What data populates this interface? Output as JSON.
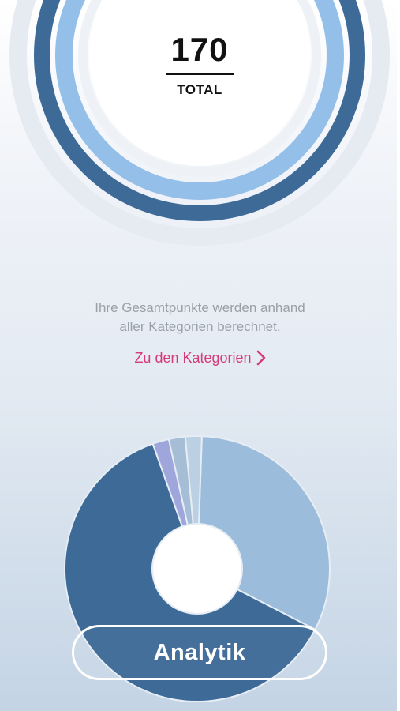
{
  "score": {
    "total_value": "170",
    "total_label": "TOTAL"
  },
  "description": {
    "line1": "Ihre Gesamtpunkte werden anhand",
    "line2": "aller Kategorien berechnet."
  },
  "categories_link": {
    "label": "Zu den Kategorien",
    "icon": "chevron-right-icon",
    "color": "#d63a7c"
  },
  "analytik_button": {
    "label": "Analytik"
  },
  "colors": {
    "dark_blue": "#3d6a96",
    "light_blue": "#93bfe8",
    "pale_blue": "#9cbcdb",
    "lavender": "#9fa6dc",
    "accent_pink": "#d63a7c"
  },
  "chart_data": {
    "type": "pie",
    "donut": true,
    "slices": [
      {
        "value": 0.32,
        "color": "#9cbcdb"
      },
      {
        "value": 0.62,
        "color": "#3d6a96"
      },
      {
        "value": 0.02,
        "color": "#9fa6dc"
      },
      {
        "value": 0.02,
        "color": "#a6bdd6"
      },
      {
        "value": 0.02,
        "color": "#bcd0e4"
      }
    ]
  }
}
